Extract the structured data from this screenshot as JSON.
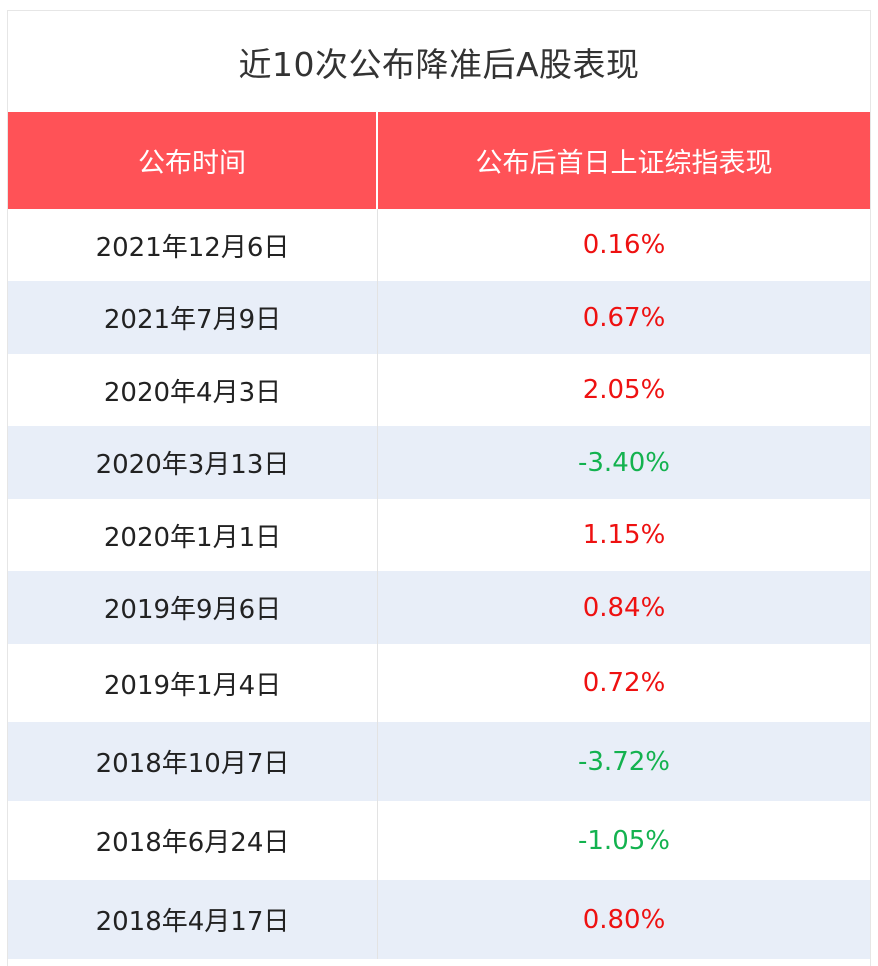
{
  "title": "近10次公布降准后A股表现",
  "colors": {
    "header_bg": "#ff5257",
    "stripe_bg": "#e8eef8",
    "positive": "#ee1111",
    "negative": "#13b24f"
  },
  "chart_data": {
    "type": "table",
    "title": "近10次公布降准后A股表现",
    "columns": [
      "公布时间",
      "公布后首日上证综指表现"
    ],
    "rows": [
      {
        "date": "2021年12月6日",
        "change": "0.16%",
        "value": 0.16
      },
      {
        "date": "2021年7月9日",
        "change": "0.67%",
        "value": 0.67
      },
      {
        "date": "2020年4月3日",
        "change": "2.05%",
        "value": 2.05
      },
      {
        "date": "2020年3月13日",
        "change": "-3.40%",
        "value": -3.4
      },
      {
        "date": "2020年1月1日",
        "change": "1.15%",
        "value": 1.15
      },
      {
        "date": "2019年9月6日",
        "change": "0.84%",
        "value": 0.84
      },
      {
        "date": "2019年1月4日",
        "change": "0.72%",
        "value": 0.72
      },
      {
        "date": "2018年10月7日",
        "change": "-3.72%",
        "value": -3.72
      },
      {
        "date": "2018年6月24日",
        "change": "-1.05%",
        "value": -1.05
      },
      {
        "date": "2018年4月17日",
        "change": "0.80%",
        "value": 0.8
      }
    ]
  }
}
